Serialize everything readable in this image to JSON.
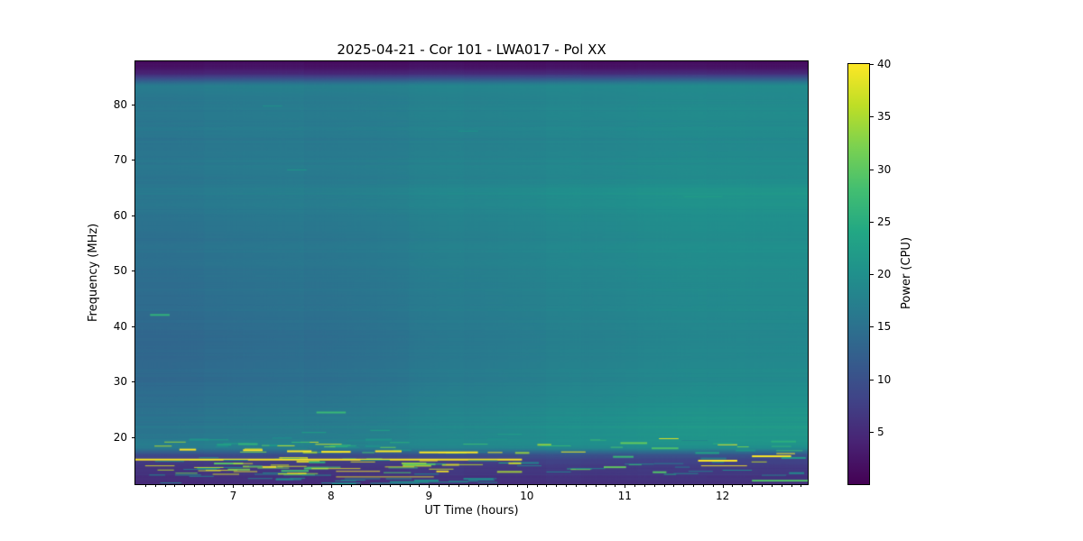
{
  "colors": {
    "figure_background": "#ffffff",
    "text": "#000000",
    "spine": "#000000"
  },
  "chart_data": {
    "type": "heatmap",
    "title": "2025-04-21 - Cor 101 - LWA017 - Pol XX",
    "xlabel": "UT Time (hours)",
    "ylabel": "Frequency (MHz)",
    "colorbar_label": "Power (CPU)",
    "colormap": "viridis",
    "vmin": 0,
    "vmax": 40,
    "x_range": [
      6.0,
      12.87
    ],
    "y_range": [
      11.5,
      87.8
    ],
    "x_major_ticks": [
      7,
      8,
      9,
      10,
      11,
      12
    ],
    "x_minor_step": 0.1,
    "y_major_ticks": [
      20,
      30,
      40,
      50,
      60,
      70,
      80
    ],
    "colorbar_ticks": [
      5,
      10,
      15,
      20,
      25,
      30,
      35,
      40
    ],
    "legend": "none",
    "grid": false,
    "time_trend": "background power rises smoothly from left (t=6h) to right (t=12.87h)",
    "background_profile_columns": [
      "freq_MHz",
      "power_at_t6",
      "power_at_t12.87"
    ],
    "background_profile": [
      [
        87.8,
        1.5,
        1.5
      ],
      [
        86.5,
        2.5,
        2.5
      ],
      [
        85.5,
        5,
        6
      ],
      [
        84.5,
        11,
        13
      ],
      [
        83.5,
        16.5,
        19
      ],
      [
        82.5,
        17,
        19.5
      ],
      [
        81,
        16.2,
        19.2
      ],
      [
        79,
        16.0,
        19.3
      ],
      [
        77,
        15.8,
        19.0
      ],
      [
        75.5,
        16.2,
        19.4
      ],
      [
        74,
        15.7,
        19.0
      ],
      [
        72,
        15.6,
        18.9
      ],
      [
        70,
        15.9,
        19.3
      ],
      [
        68.3,
        16.3,
        19.8
      ],
      [
        67,
        15.8,
        19.5
      ],
      [
        65.5,
        16.0,
        20.3
      ],
      [
        64,
        16.3,
        21.2
      ],
      [
        62.5,
        16.0,
        20.8
      ],
      [
        61,
        15.7,
        20.3
      ],
      [
        59,
        15.4,
        20.1
      ],
      [
        57,
        15.2,
        19.9
      ],
      [
        55,
        15.0,
        19.8
      ],
      [
        53,
        15.2,
        20.0
      ],
      [
        51,
        14.9,
        19.7
      ],
      [
        49,
        14.7,
        19.6
      ],
      [
        47,
        14.6,
        19.4
      ],
      [
        45.5,
        14.3,
        19.1
      ],
      [
        44,
        14.1,
        19.0
      ],
      [
        42,
        14.0,
        18.9
      ],
      [
        40,
        13.9,
        18.9
      ],
      [
        38,
        13.7,
        18.8
      ],
      [
        36,
        13.6,
        18.8
      ],
      [
        34,
        13.8,
        19.0
      ],
      [
        32,
        13.9,
        19.2
      ],
      [
        30,
        14.0,
        19.4
      ],
      [
        28.5,
        14.3,
        19.7
      ],
      [
        27,
        14.7,
        20.1
      ],
      [
        25.5,
        15.0,
        20.6
      ],
      [
        24,
        15.3,
        21.0
      ],
      [
        22.5,
        15.5,
        21.3
      ],
      [
        21,
        15.8,
        21.5
      ],
      [
        19.8,
        16.3,
        21.4
      ],
      [
        18.8,
        17.0,
        20.8
      ],
      [
        18.0,
        16.5,
        19.5
      ],
      [
        17.4,
        13.0,
        15.0
      ],
      [
        16.8,
        9.5,
        11.0
      ],
      [
        16.2,
        8.0,
        9.0
      ],
      [
        15.5,
        7.0,
        8.0
      ],
      [
        14.5,
        6.5,
        7.2
      ],
      [
        13.5,
        6.0,
        6.6
      ],
      [
        12.5,
        5.5,
        6.2
      ],
      [
        11.5,
        5.2,
        5.8
      ]
    ],
    "rfi_features_columns": [
      "t_start",
      "t_end",
      "freq_MHz",
      "power",
      "thickness_px"
    ],
    "rfi_features": [
      [
        6.0,
        9.95,
        16.1,
        40,
        2
      ],
      [
        6.15,
        6.35,
        42.2,
        26,
        2
      ],
      [
        7.85,
        8.15,
        24.6,
        27,
        2
      ],
      [
        7.55,
        7.75,
        68.3,
        21,
        1
      ],
      [
        7.3,
        7.5,
        79.8,
        20.5,
        1
      ],
      [
        9.3,
        9.5,
        75.3,
        20.5,
        1
      ],
      [
        11.6,
        12.0,
        63.5,
        22.5,
        1
      ],
      [
        12.3,
        12.87,
        12.3,
        29,
        2
      ],
      [
        11.75,
        12.15,
        15.9,
        40,
        2
      ],
      [
        11.78,
        12.25,
        14.9,
        40,
        1
      ],
      [
        12.3,
        12.7,
        16.7,
        40,
        2
      ],
      [
        11.35,
        11.55,
        19.8,
        38,
        1
      ],
      [
        11.95,
        12.15,
        18.7,
        39,
        1
      ],
      [
        12.55,
        12.74,
        17.1,
        40,
        1
      ],
      [
        12.6,
        12.85,
        16.4,
        22,
        2
      ],
      [
        10.88,
        11.09,
        16.6,
        27,
        2
      ],
      [
        10.35,
        10.6,
        17.4,
        39,
        1
      ],
      [
        6.55,
        6.75,
        19.7,
        21,
        2
      ],
      [
        6.75,
        6.95,
        19.6,
        22,
        1
      ],
      [
        8.35,
        8.62,
        19.7,
        21,
        2
      ],
      [
        9.6,
        9.8,
        19.7,
        21,
        1
      ],
      [
        10.75,
        10.95,
        19.6,
        21,
        1
      ],
      [
        7.4,
        7.6,
        19.9,
        20.5,
        1
      ],
      [
        7.05,
        7.25,
        18.9,
        26,
        2
      ],
      [
        8.0,
        8.2,
        18.6,
        26,
        1
      ],
      [
        9.35,
        9.6,
        18.8,
        27,
        1
      ],
      [
        10.15,
        10.45,
        18.5,
        26,
        1
      ],
      [
        11.9,
        12.1,
        18.9,
        25,
        1
      ],
      [
        12.5,
        12.7,
        18.4,
        26,
        1
      ],
      [
        8.6,
        8.8,
        19.1,
        25,
        1
      ],
      [
        6.45,
        6.62,
        17.9,
        40,
        2
      ],
      [
        7.1,
        7.3,
        17.8,
        40,
        2
      ],
      [
        7.55,
        7.8,
        17.6,
        40,
        2
      ],
      [
        7.9,
        8.2,
        17.5,
        40,
        2
      ],
      [
        8.45,
        8.72,
        17.6,
        40,
        2
      ],
      [
        8.9,
        9.5,
        17.4,
        40,
        2
      ],
      [
        9.6,
        9.75,
        17.3,
        39,
        1
      ],
      [
        6.1,
        6.4,
        14.9,
        38,
        1
      ],
      [
        6.6,
        6.9,
        14.6,
        37,
        1
      ],
      [
        7.0,
        7.2,
        15.3,
        38,
        1
      ],
      [
        7.45,
        7.75,
        14.8,
        38,
        1
      ],
      [
        7.8,
        8.3,
        14.4,
        39,
        1
      ],
      [
        8.05,
        8.5,
        13.9,
        40,
        1
      ],
      [
        8.55,
        8.85,
        14.7,
        38,
        1
      ],
      [
        9.0,
        9.25,
        14.3,
        37,
        1
      ],
      [
        9.3,
        9.55,
        15.1,
        36,
        1
      ],
      [
        8.2,
        8.45,
        15.6,
        38,
        1
      ],
      [
        8.05,
        9.05,
        12.9,
        39,
        1
      ],
      [
        6.2,
        6.5,
        15.7,
        18,
        1
      ],
      [
        6.9,
        7.15,
        15.9,
        18,
        1
      ],
      [
        7.3,
        7.55,
        13.6,
        17,
        1
      ],
      [
        7.7,
        8.0,
        13.2,
        18,
        1
      ],
      [
        8.3,
        8.6,
        15.9,
        19,
        1
      ],
      [
        8.85,
        9.1,
        13.4,
        18,
        1
      ],
      [
        9.4,
        9.7,
        15.8,
        18,
        1
      ],
      [
        9.9,
        10.15,
        14.9,
        17,
        1
      ],
      [
        10.5,
        10.8,
        14.4,
        17,
        1
      ],
      [
        10.2,
        10.45,
        13.8,
        17,
        1
      ],
      [
        11.0,
        11.3,
        15.2,
        17,
        1
      ],
      [
        11.5,
        11.75,
        13.5,
        17,
        1
      ],
      [
        12.0,
        12.3,
        14.1,
        18,
        1
      ],
      [
        6.55,
        6.8,
        13.0,
        17,
        1
      ],
      [
        7.15,
        7.4,
        12.6,
        16,
        1
      ],
      [
        8.1,
        8.35,
        12.3,
        17,
        1
      ],
      [
        9.2,
        9.5,
        12.1,
        18,
        1
      ],
      [
        8.6,
        9.0,
        12.05,
        19,
        2
      ],
      [
        9.0,
        9.4,
        11.95,
        19,
        1
      ],
      [
        7.9,
        8.3,
        11.8,
        18,
        1
      ],
      [
        8.4,
        8.9,
        11.75,
        19,
        1
      ],
      [
        9.5,
        9.7,
        11.9,
        17,
        1
      ],
      [
        11.3,
        11.6,
        15.3,
        16,
        1
      ],
      [
        11.65,
        11.9,
        13.9,
        16,
        1
      ],
      [
        12.4,
        12.65,
        13.2,
        17,
        1
      ],
      [
        7.7,
        7.95,
        20.9,
        23,
        1
      ],
      [
        8.4,
        8.6,
        21.3,
        23,
        1
      ],
      [
        9.7,
        9.95,
        20.6,
        22,
        1
      ]
    ],
    "rfi_clutter_bands_columns": [
      "t_min",
      "t_max",
      "f_min",
      "f_max",
      "count",
      "p_min",
      "p_max",
      "len_min_h",
      "len_max_h",
      "seed"
    ],
    "rfi_clutter_bands": [
      [
        6.05,
        9.6,
        13.2,
        16.4,
        46,
        15,
        40,
        0.12,
        0.35,
        7
      ],
      [
        9.6,
        12.85,
        13.2,
        16.4,
        16,
        15,
        38,
        0.1,
        0.3,
        11
      ],
      [
        6.05,
        9.6,
        17.2,
        19.6,
        30,
        17,
        40,
        0.1,
        0.3,
        23
      ],
      [
        9.6,
        12.85,
        17.2,
        19.6,
        12,
        17,
        38,
        0.1,
        0.28,
        31
      ],
      [
        6.2,
        9.7,
        11.6,
        12.7,
        12,
        15,
        20,
        0.15,
        0.4,
        41
      ]
    ],
    "colormap_stops": [
      [
        0.0,
        68,
        1,
        84
      ],
      [
        0.1,
        72,
        35,
        116
      ],
      [
        0.2,
        64,
        67,
        135
      ],
      [
        0.3,
        52,
        94,
        141
      ],
      [
        0.4,
        41,
        120,
        142
      ],
      [
        0.5,
        32,
        144,
        140
      ],
      [
        0.6,
        34,
        167,
        132
      ],
      [
        0.7,
        66,
        190,
        113
      ],
      [
        0.8,
        121,
        209,
        81
      ],
      [
        0.9,
        189,
        222,
        38
      ],
      [
        1.0,
        253,
        231,
        37
      ]
    ]
  }
}
